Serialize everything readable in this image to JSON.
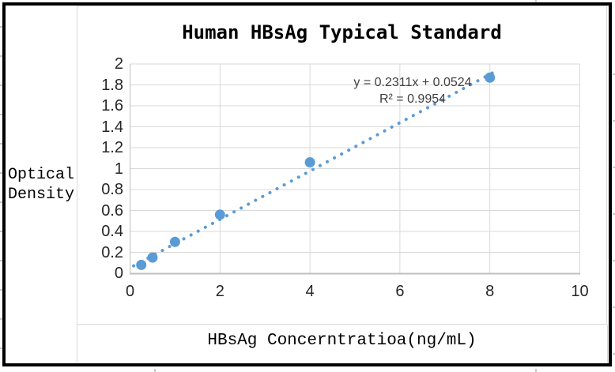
{
  "title": "Human HBsAg Typical Standard",
  "y_axis_title_lines": [
    "Optical",
    "Density"
  ],
  "x_axis_title": "HBsAg Concerntratioa(ng/mL)",
  "colors": {
    "marker": "#5B9BD5",
    "trendline": "#5B9BD5",
    "gridline": "#D9D9D9",
    "axis_line": "#BFBFBF",
    "tick_text": "#262626",
    "equation_text": "#3F3F3F",
    "frame_border": "#000000",
    "chart_border": "#D9D9D9"
  },
  "chart_data": {
    "type": "scatter",
    "title": "Human HBsAg Typical Standard",
    "xlabel": "HBsAg Concerntratioa(ng/mL)",
    "ylabel": "Optical Density",
    "ylabel_lines": [
      "Optical",
      "Density"
    ],
    "x": [
      0.25,
      0.5,
      1,
      2,
      4,
      8
    ],
    "y": [
      0.08,
      0.15,
      0.3,
      0.56,
      1.06,
      1.87
    ],
    "xlim": [
      0,
      10
    ],
    "ylim": [
      0,
      2
    ],
    "x_tick_values": [
      0,
      2,
      4,
      6,
      8,
      10
    ],
    "x_tick_labels": [
      "0",
      "2",
      "4",
      "6",
      "8",
      "10"
    ],
    "y_tick_values": [
      0,
      0.2,
      0.4,
      0.6,
      0.8,
      1,
      1.2,
      1.4,
      1.6,
      1.8,
      2
    ],
    "y_tick_labels": [
      "0",
      "0.2",
      "0.4",
      "0.6",
      "0.8",
      "1",
      "1.2",
      "1.4",
      "1.6",
      "1.8",
      "2"
    ],
    "grid": true,
    "legend": "none",
    "trendline": {
      "style": "dotted",
      "slope": 0.2311,
      "intercept": 0.0524,
      "x_start": 0.08,
      "x_end": 8.1,
      "label_line1": "y = 0.2311x + 0.0524",
      "label_line2": "R² = 0.9954",
      "r_squared": 0.9954
    }
  }
}
